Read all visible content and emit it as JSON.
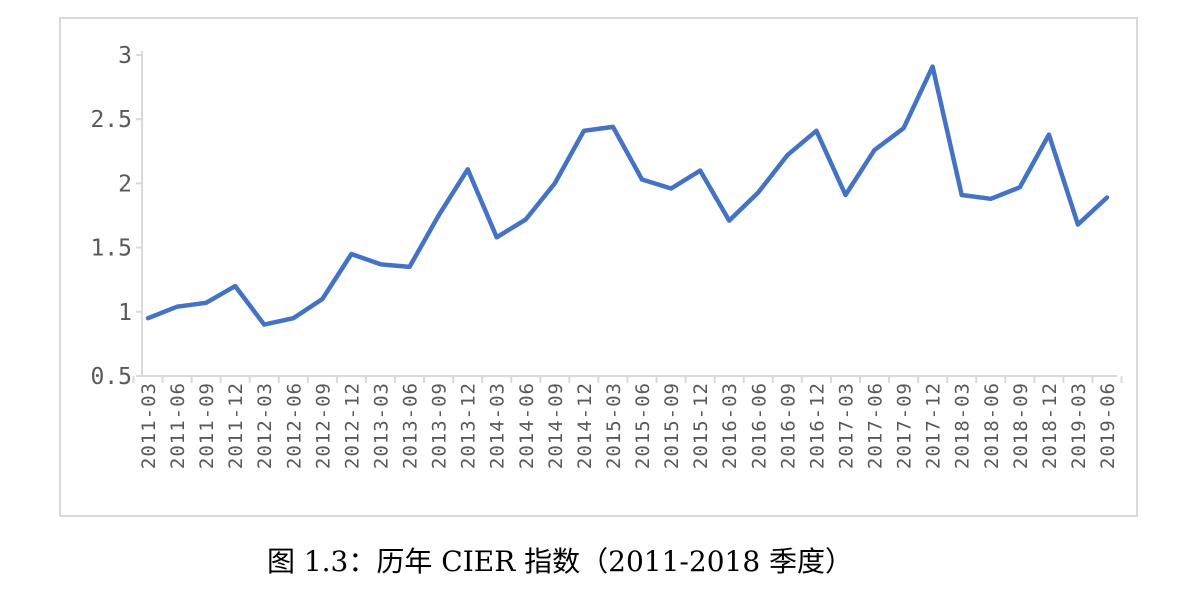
{
  "chart_data": {
    "type": "line",
    "title": "",
    "xlabel": "",
    "ylabel": "",
    "ylim": [
      0.5,
      3
    ],
    "yticks": [
      "0.5",
      "1",
      "1.5",
      "2",
      "2.5",
      "3"
    ],
    "grid": false,
    "line_color": "#4472c4",
    "categories": [
      "2011-03",
      "2011-06",
      "2011-09",
      "2011-12",
      "2012-03",
      "2012-06",
      "2012-09",
      "2012-12",
      "2013-03",
      "2013-06",
      "2013-09",
      "2013-12",
      "2014-03",
      "2014-06",
      "2014-09",
      "2014-12",
      "2015-03",
      "2015-06",
      "2015-09",
      "2015-12",
      "2016-03",
      "2016-06",
      "2016-09",
      "2016-12",
      "2017-03",
      "2017-06",
      "2017-09",
      "2017-12",
      "2018-03",
      "2018-06",
      "2018-09",
      "2018-12",
      "2019-03",
      "2019-06"
    ],
    "series": [
      {
        "values": [
          0.95,
          1.04,
          1.07,
          1.2,
          0.9,
          0.95,
          1.1,
          1.45,
          1.37,
          1.35,
          1.75,
          2.11,
          1.58,
          1.72,
          2.0,
          2.41,
          2.44,
          2.03,
          1.96,
          2.1,
          1.71,
          1.93,
          2.22,
          2.41,
          1.91,
          2.26,
          2.43,
          2.91,
          1.91,
          1.88,
          1.97,
          2.38,
          1.68,
          1.89
        ]
      }
    ]
  },
  "caption": "图 1.3：历年 CIER 指数（2011-2018 季度）"
}
